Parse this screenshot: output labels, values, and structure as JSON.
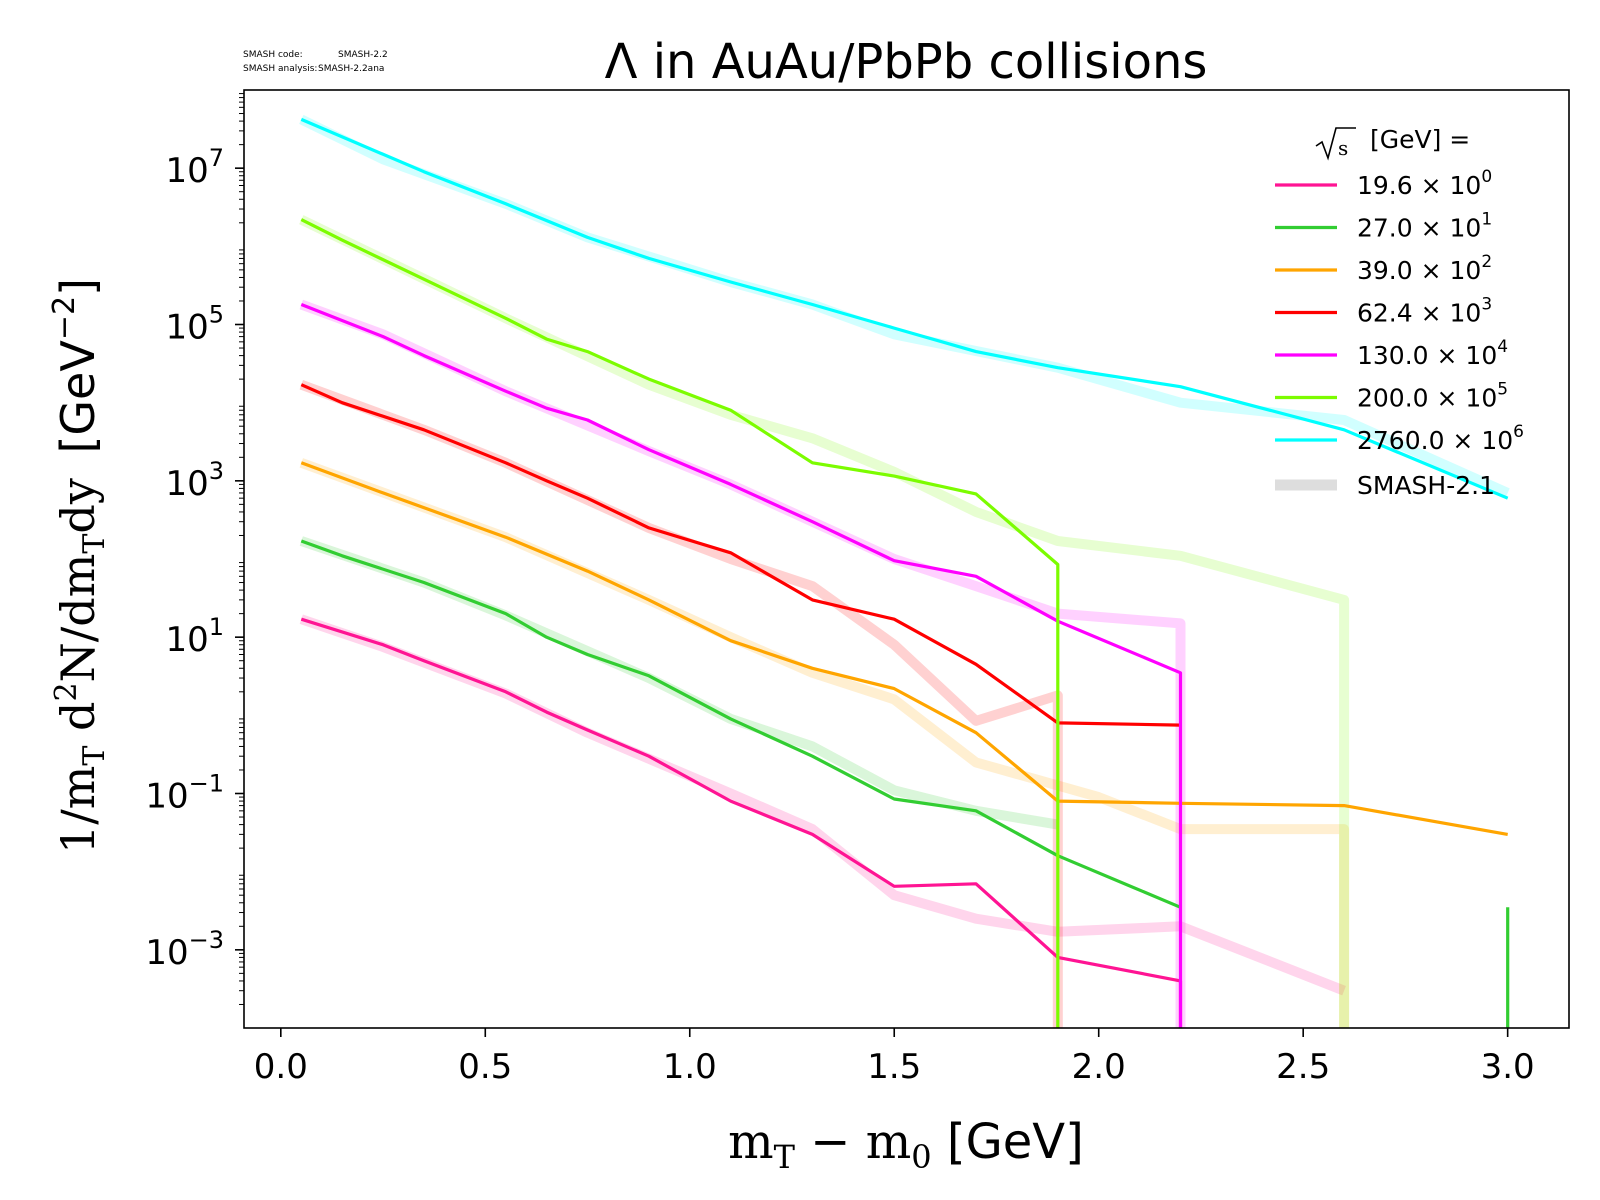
{
  "meta": {
    "code_label": "SMASH code:",
    "code_value": "SMASH-2.2",
    "analysis_label": "SMASH analysis:",
    "analysis_value": "SMASH-2.2ana"
  },
  "chart_data": {
    "type": "line",
    "title": "Λ in AuAu/PbPb collisions",
    "xlabel": "m_T − m_0 [GeV]",
    "ylabel": "1/m_T d²N/dm_Tdy [GeV⁻²]",
    "xlim": [
      -0.09,
      3.15
    ],
    "ylim": [
      0.0001,
      100000000
    ],
    "yscale": "log",
    "grid": false,
    "legend_title": "√s [GeV] =",
    "legend_position": "top-right",
    "x_ticks": [
      "0.0",
      "0.5",
      "1.0",
      "1.5",
      "2.0",
      "2.5",
      "3.0"
    ],
    "x_tick_values": [
      0.0,
      0.5,
      1.0,
      1.5,
      2.0,
      2.5,
      3.0
    ],
    "y_ticks": [
      {
        "value": 0.001,
        "base": "10",
        "exp": "−3"
      },
      {
        "value": 0.1,
        "base": "10",
        "exp": "−1"
      },
      {
        "value": 10,
        "base": "10",
        "exp": "1"
      },
      {
        "value": 1000,
        "base": "10",
        "exp": "3"
      },
      {
        "value": 100000,
        "base": "10",
        "exp": "5"
      },
      {
        "value": 10000000,
        "base": "10",
        "exp": "7"
      }
    ],
    "reference_label": "SMASH-2.1",
    "reference_color": "#dddddd",
    "series": [
      {
        "name": "19.6",
        "multiplier": "10",
        "mult_exp": "0",
        "color": "#ff1493",
        "x": [
          0.05,
          0.25,
          0.35,
          0.55,
          0.65,
          0.75,
          0.9,
          1.1,
          1.3,
          1.5,
          1.7,
          1.9,
          2.2,
          2.2
        ],
        "y": [
          17,
          8,
          5,
          2,
          1.1,
          0.65,
          0.3,
          0.08,
          0.03,
          0.0065,
          0.007,
          0.0008,
          0.0004,
          0.0001
        ],
        "ref_x": [
          0.05,
          0.25,
          0.55,
          0.75,
          1.1,
          1.3,
          1.5,
          1.7,
          1.9,
          2.2,
          2.6
        ],
        "ref_y": [
          17,
          7.5,
          1.9,
          0.6,
          0.1,
          0.035,
          0.005,
          0.0025,
          0.0017,
          0.002,
          0.0003
        ]
      },
      {
        "name": "27.0",
        "multiplier": "10",
        "mult_exp": "1",
        "color": "#32cd32",
        "x": [
          0.05,
          0.15,
          0.35,
          0.55,
          0.65,
          0.75,
          0.9,
          1.1,
          1.3,
          1.5,
          1.7,
          1.9,
          2.2
        ],
        "y": [
          170,
          110,
          50,
          20,
          10,
          6,
          3.2,
          0.9,
          0.3,
          0.085,
          0.06,
          0.016,
          0.0035
        ],
        "ref_x": [
          0.05,
          0.35,
          0.55,
          0.9,
          1.1,
          1.3,
          1.5,
          1.7,
          1.9
        ],
        "ref_y": [
          170,
          50,
          19,
          3,
          0.9,
          0.4,
          0.11,
          0.06,
          0.04
        ],
        "extra_x": [
          3.0,
          3.0
        ],
        "extra_y": [
          0.0035,
          0.0001
        ]
      },
      {
        "name": "39.0",
        "multiplier": "10",
        "mult_exp": "2",
        "color": "#ffa500",
        "x": [
          0.05,
          0.25,
          0.55,
          0.75,
          0.9,
          1.1,
          1.3,
          1.5,
          1.7,
          1.9,
          2.2,
          2.6,
          3.0
        ],
        "y": [
          1700,
          700,
          190,
          70,
          30,
          9,
          4,
          2.2,
          0.6,
          0.08,
          0.075,
          0.07,
          0.03
        ],
        "ref_x": [
          0.05,
          0.55,
          0.9,
          1.1,
          1.3,
          1.5,
          1.7,
          2.0,
          2.2,
          2.6,
          2.6
        ],
        "ref_y": [
          1700,
          190,
          30,
          10,
          3.5,
          1.6,
          0.25,
          0.09,
          0.035,
          0.035,
          0.0001
        ]
      },
      {
        "name": "62.4",
        "multiplier": "10",
        "mult_exp": "3",
        "color": "#ff0000",
        "x": [
          0.05,
          0.15,
          0.35,
          0.55,
          0.65,
          0.75,
          0.9,
          1.1,
          1.3,
          1.5,
          1.7,
          1.9,
          2.2
        ],
        "y": [
          17000,
          10000,
          4500,
          1700,
          1000,
          600,
          250,
          120,
          30,
          17,
          4.5,
          0.8,
          0.75
        ],
        "ref_x": [
          0.05,
          0.35,
          0.55,
          0.9,
          1.1,
          1.3,
          1.5,
          1.7,
          1.9,
          1.9
        ],
        "ref_y": [
          17000,
          4500,
          1700,
          250,
          100,
          45,
          8,
          0.85,
          1.8,
          0.0001
        ]
      },
      {
        "name": "130.0",
        "multiplier": "10",
        "mult_exp": "4",
        "color": "#ff00ff",
        "x": [
          0.05,
          0.25,
          0.35,
          0.55,
          0.65,
          0.75,
          0.9,
          1.1,
          1.3,
          1.5,
          1.7,
          1.9,
          2.2,
          2.2
        ],
        "y": [
          180000,
          70000,
          40000,
          14000,
          8500,
          6000,
          2500,
          900,
          300,
          95,
          60,
          16,
          3.5,
          0.0001
        ],
        "ref_x": [
          0.05,
          0.25,
          0.55,
          0.9,
          1.1,
          1.3,
          1.5,
          1.7,
          1.9,
          2.2,
          2.2
        ],
        "ref_y": [
          180000,
          75000,
          14000,
          2400,
          900,
          300,
          100,
          45,
          20,
          15,
          0.0001
        ]
      },
      {
        "name": "200.0",
        "multiplier": "10",
        "mult_exp": "5",
        "color": "#7cfc00",
        "x": [
          0.05,
          0.15,
          0.35,
          0.55,
          0.65,
          0.75,
          0.9,
          1.1,
          1.3,
          1.5,
          1.7,
          1.9,
          1.9
        ],
        "y": [
          2200000,
          1200000,
          380000,
          120000,
          65000,
          45000,
          20000,
          8000,
          1700,
          1150,
          680,
          85,
          0.0001
        ],
        "ref_x": [
          0.05,
          0.55,
          0.9,
          1.1,
          1.3,
          1.5,
          1.7,
          1.9,
          2.2,
          2.6,
          2.6
        ],
        "ref_y": [
          2200000,
          120000,
          17000,
          7000,
          3500,
          1300,
          400,
          170,
          110,
          30,
          0.0001
        ]
      },
      {
        "name": "2760.0",
        "multiplier": "10",
        "mult_exp": "6",
        "color": "#00ffff",
        "x": [
          0.05,
          0.35,
          0.55,
          0.75,
          0.9,
          1.1,
          1.3,
          1.5,
          1.7,
          1.9,
          2.2,
          2.6,
          3.0
        ],
        "y": [
          42000000,
          9000000,
          3500000,
          1300000,
          700000,
          350000,
          180000,
          90000,
          45000,
          28000,
          16000,
          4500,
          600
        ],
        "ref_x": [
          0.05,
          0.25,
          0.55,
          0.75,
          1.1,
          1.3,
          1.5,
          1.9,
          2.2,
          2.6,
          3.0
        ],
        "ref_y": [
          42000000,
          13000000,
          3500000,
          1300000,
          350000,
          180000,
          75000,
          28000,
          10000,
          6000,
          700
        ]
      }
    ]
  }
}
